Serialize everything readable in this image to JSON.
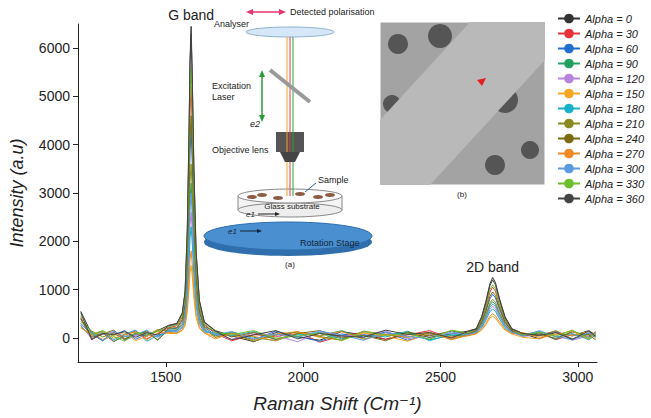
{
  "chart_data": {
    "type": "line",
    "x_label": "Raman Shift (Cm⁻¹)",
    "y_label": "Intensity (a.u)",
    "xlim": [
      1180,
      3070
    ],
    "xticks": [
      1500,
      2000,
      2500,
      3000
    ],
    "ylim": [
      -500,
      6500
    ],
    "yticks": [
      0,
      1000,
      2000,
      3000,
      4000,
      5000,
      6000
    ],
    "grid": false,
    "legend": "right",
    "annotations": [
      {
        "text": "G band",
        "x": 1592,
        "y": 6450
      },
      {
        "text": "2D band",
        "x": 2690,
        "y": 1250
      }
    ],
    "insets": {
      "setup": {
        "polarisation": "Detected polarisation",
        "analyser": "Analyser",
        "laser": "Excitation Laser",
        "e2": "e2",
        "objective": "Objective lens",
        "sample": "Sample",
        "substrate": "Glass substrate",
        "e1": "e1",
        "stage": "Rotation Stage",
        "caption": "(a)"
      },
      "micrograph": {
        "caption": "(b)"
      }
    },
    "x": [
      1190,
      1230,
      1270,
      1310,
      1350,
      1390,
      1430,
      1470,
      1510,
      1540,
      1560,
      1570,
      1578,
      1584,
      1588,
      1592,
      1596,
      1602,
      1610,
      1622,
      1640,
      1680,
      1740,
      1820,
      1900,
      1980,
      2060,
      2140,
      2220,
      2300,
      2380,
      2460,
      2540,
      2600,
      2630,
      2650,
      2665,
      2680,
      2690,
      2700,
      2715,
      2735,
      2760,
      2800,
      2860,
      2920,
      2980,
      3040,
      3065
    ],
    "series": [
      {
        "name": "Alpha = 0",
        "color": "#333333",
        "values": [
          550,
          80,
          -60,
          120,
          -40,
          90,
          30,
          150,
          260,
          300,
          520,
          970,
          2260,
          4190,
          5800,
          6450,
          5480,
          3550,
          1810,
          780,
          330,
          150,
          40,
          -80,
          110,
          20,
          -50,
          130,
          60,
          -30,
          100,
          10,
          80,
          140,
          190,
          440,
          750,
          1120,
          1250,
          1150,
          810,
          440,
          190,
          90,
          -20,
          120,
          40,
          150,
          60
        ]
      },
      {
        "name": "Alpha = 30",
        "color": "#e8333a",
        "values": [
          420,
          -40,
          100,
          -80,
          60,
          140,
          -20,
          90,
          210,
          250,
          430,
          800,
          1830,
          3380,
          4680,
          5200,
          4420,
          2860,
          1460,
          630,
          270,
          90,
          -60,
          70,
          20,
          130,
          -90,
          40,
          110,
          -30,
          60,
          150,
          -10,
          100,
          170,
          360,
          630,
          950,
          1050,
          970,
          680,
          370,
          160,
          50,
          110,
          -40,
          70,
          20,
          130
        ]
      },
      {
        "name": "Alpha = 60",
        "color": "#1f6fd1",
        "values": [
          380,
          120,
          -50,
          60,
          150,
          -30,
          80,
          20,
          180,
          200,
          360,
          660,
          1510,
          2800,
          3870,
          4300,
          3660,
          2370,
          1210,
          520,
          220,
          60,
          90,
          -40,
          140,
          30,
          -70,
          80,
          20,
          120,
          -50,
          70,
          30,
          80,
          140,
          310,
          540,
          810,
          900,
          830,
          590,
          320,
          140,
          40,
          60,
          130,
          -30,
          90,
          20
        ]
      },
      {
        "name": "Alpha = 90",
        "color": "#23a060",
        "values": [
          300,
          60,
          140,
          -70,
          30,
          80,
          120,
          -40,
          160,
          160,
          280,
          490,
          1120,
          2080,
          2880,
          3200,
          2720,
          1760,
          900,
          390,
          170,
          40,
          120,
          10,
          -60,
          90,
          40,
          150,
          -20,
          70,
          110,
          -40,
          50,
          70,
          120,
          260,
          450,
          680,
          750,
          690,
          490,
          270,
          120,
          60,
          100,
          -30,
          140,
          10,
          80
        ]
      },
      {
        "name": "Alpha = 120",
        "color": "#b784e0",
        "values": [
          260,
          -20,
          70,
          130,
          -50,
          40,
          100,
          60,
          120,
          130,
          230,
          400,
          910,
          1690,
          2340,
          2600,
          2210,
          1430,
          730,
          320,
          140,
          80,
          -30,
          100,
          50,
          -80,
          120,
          30,
          70,
          140,
          -20,
          60,
          90,
          60,
          110,
          230,
          390,
          590,
          650,
          600,
          420,
          230,
          110,
          30,
          70,
          120,
          -50,
          40,
          110
        ]
      },
      {
        "name": "Alpha = 150",
        "color": "#f5a623",
        "values": [
          200,
          90,
          -30,
          50,
          110,
          -60,
          30,
          140,
          90,
          90,
          150,
          250,
          530,
          980,
          1350,
          1500,
          1280,
          830,
          420,
          190,
          110,
          20,
          60,
          -50,
          80,
          130,
          10,
          -40,
          100,
          40,
          -70,
          90,
          20,
          40,
          80,
          160,
          270,
          410,
          450,
          410,
          290,
          160,
          80,
          10,
          -20,
          90,
          50,
          130,
          -10
        ]
      },
      {
        "name": "Alpha = 180",
        "color": "#18b1c9",
        "values": [
          240,
          30,
          110,
          -40,
          80,
          160,
          -70,
          50,
          130,
          120,
          210,
          350,
          810,
          1500,
          2070,
          2300,
          1960,
          1270,
          650,
          290,
          120,
          100,
          40,
          130,
          -40,
          70,
          110,
          -20,
          60,
          20,
          140,
          -60,
          80,
          50,
          100,
          210,
          360,
          540,
          600,
          550,
          390,
          210,
          100,
          70,
          130,
          20,
          90,
          -40,
          60
        ]
      },
      {
        "name": "Alpha = 210",
        "color": "#8a8a1e",
        "values": [
          340,
          140,
          20,
          90,
          -30,
          110,
          50,
          170,
          140,
          170,
          310,
          550,
          1260,
          2340,
          3240,
          3600,
          3060,
          1980,
          1010,
          440,
          190,
          10,
          100,
          -70,
          60,
          120,
          30,
          -50,
          140,
          70,
          10,
          100,
          -30,
          70,
          130,
          280,
          480,
          720,
          800,
          740,
          520,
          280,
          130,
          80,
          40,
          150,
          -20,
          70,
          100
        ]
      },
      {
        "name": "Alpha = 240",
        "color": "#7a6a10",
        "values": [
          400,
          10,
          80,
          160,
          -20,
          70,
          140,
          -50,
          200,
          210,
          380,
          700,
          1610,
          2990,
          4140,
          4600,
          3910,
          2530,
          1290,
          560,
          230,
          130,
          20,
          110,
          -30,
          90,
          150,
          0,
          50,
          -60,
          120,
          40,
          140,
          90,
          150,
          330,
          570,
          860,
          950,
          880,
          620,
          330,
          150,
          50,
          80,
          -10,
          120,
          60,
          -40
        ]
      },
      {
        "name": "Alpha = 270",
        "color": "#f08a24",
        "values": [
          220,
          50,
          130,
          -10,
          70,
          120,
          -40,
          100,
          110,
          100,
          170,
          290,
          640,
          1180,
          1620,
          1800,
          1530,
          1000,
          510,
          230,
          100,
          -20,
          90,
          30,
          -60,
          110,
          50,
          130,
          -30,
          80,
          20,
          120,
          -40,
          50,
          90,
          180,
          300,
          450,
          500,
          460,
          330,
          180,
          90,
          110,
          10,
          70,
          140,
          -30,
          90
        ]
      },
      {
        "name": "Alpha = 300",
        "color": "#5a9be0",
        "values": [
          280,
          100,
          -60,
          140,
          20,
          60,
          160,
          10,
          150,
          150,
          260,
          460,
          1050,
          1950,
          2700,
          3000,
          2550,
          1650,
          840,
          360,
          160,
          70,
          130,
          -20,
          80,
          10,
          140,
          60,
          -50,
          110,
          30,
          -20,
          120,
          70,
          120,
          250,
          420,
          630,
          700,
          650,
          460,
          250,
          120,
          40,
          150,
          30,
          -40,
          110,
          50
        ]
      },
      {
        "name": "Alpha = 330",
        "color": "#6cbf2a",
        "values": [
          460,
          70,
          150,
          30,
          -70,
          100,
          80,
          130,
          230,
          270,
          460,
          860,
          1970,
          3640,
          5040,
          5600,
          4760,
          3080,
          1570,
          680,
          290,
          110,
          70,
          150,
          -10,
          40,
          100,
          -60,
          130,
          50,
          90,
          -30,
          160,
          100,
          180,
          390,
          670,
          1000,
          1100,
          1020,
          710,
          390,
          180,
          60,
          120,
          40,
          160,
          -20,
          100
        ]
      },
      {
        "name": "Alpha = 360",
        "color": "#444444",
        "values": [
          520,
          -30,
          90,
          70,
          130,
          10,
          110,
          60,
          250,
          290,
          510,
          950,
          2210,
          4100,
          5670,
          6300,
          5360,
          3470,
          1770,
          760,
          320,
          140,
          -40,
          60,
          150,
          -20,
          90,
          40,
          10,
          160,
          70,
          110,
          0,
          130,
          180,
          420,
          720,
          1080,
          1200,
          1100,
          780,
          420,
          180,
          90,
          50,
          110,
          -30,
          140,
          30
        ]
      }
    ]
  }
}
